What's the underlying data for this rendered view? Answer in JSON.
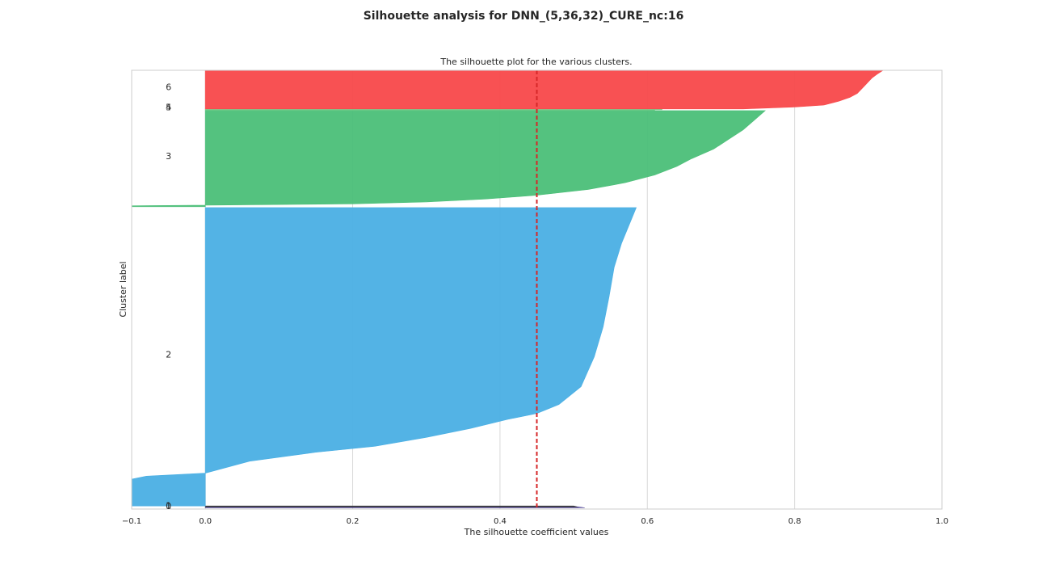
{
  "suptitle": "Silhouette analysis for DNN_(5,36,32)_CURE_nc:16",
  "chart_data": {
    "type": "area",
    "title": "The silhouette plot for the various clusters.",
    "xlabel": "The silhouette coefficient values",
    "ylabel": "Cluster label",
    "xlim": [
      -0.1,
      1.0
    ],
    "ylim": [
      0,
      1000
    ],
    "xticks": [
      -0.1,
      0.0,
      0.2,
      0.4,
      0.6,
      0.8,
      1.0
    ],
    "xtick_labels": [
      "−0.1",
      "0.0",
      "0.2",
      "0.4",
      "0.6",
      "0.8",
      "1.0"
    ],
    "grid": true,
    "average_silhouette": 0.45,
    "average_line_color": "#d62728",
    "clusters": [
      {
        "label": "0",
        "color": "#3b2d8a",
        "y_start": 3,
        "y_end": 5,
        "profile": [
          [
            0,
            0.515
          ],
          [
            1,
            0.505
          ]
        ]
      },
      {
        "label": "1",
        "color": "#3a3a3a",
        "y_start": 5,
        "y_end": 7,
        "profile": [
          [
            0,
            0.505
          ],
          [
            1,
            0.5
          ]
        ]
      },
      {
        "label": "2",
        "color": "#4aafe4",
        "y_start": 7,
        "y_end": 687,
        "profile": [
          [
            0,
            -0.1
          ],
          [
            0.09,
            -0.1
          ],
          [
            0.1,
            -0.08
          ],
          [
            0.11,
            0.0
          ],
          [
            0.15,
            0.06
          ],
          [
            0.18,
            0.15
          ],
          [
            0.2,
            0.23
          ],
          [
            0.23,
            0.3
          ],
          [
            0.26,
            0.36
          ],
          [
            0.29,
            0.41
          ],
          [
            0.31,
            0.45
          ],
          [
            0.34,
            0.48
          ],
          [
            0.4,
            0.51
          ],
          [
            0.5,
            0.528
          ],
          [
            0.6,
            0.54
          ],
          [
            0.7,
            0.548
          ],
          [
            0.8,
            0.555
          ],
          [
            0.88,
            0.565
          ],
          [
            0.94,
            0.575
          ],
          [
            1.0,
            0.585
          ]
        ]
      },
      {
        "label": "3",
        "color": "#4bbf78",
        "y_start": 689,
        "y_end": 908,
        "profile": [
          [
            0,
            -0.1
          ],
          [
            0.01,
            -0.1
          ],
          [
            0.03,
            0.2
          ],
          [
            0.05,
            0.3
          ],
          [
            0.08,
            0.38
          ],
          [
            0.12,
            0.45
          ],
          [
            0.18,
            0.52
          ],
          [
            0.25,
            0.57
          ],
          [
            0.33,
            0.61
          ],
          [
            0.42,
            0.64
          ],
          [
            0.5,
            0.66
          ],
          [
            0.6,
            0.69
          ],
          [
            0.7,
            0.71
          ],
          [
            0.8,
            0.73
          ],
          [
            0.9,
            0.745
          ],
          [
            1.0,
            0.76
          ]
        ]
      },
      {
        "label": "4",
        "color": "#62c783",
        "y_start": 908,
        "y_end": 910,
        "profile": [
          [
            0,
            0.61
          ],
          [
            1,
            0.61
          ]
        ]
      },
      {
        "label": "5",
        "color": "#7acb8c",
        "y_start": 910,
        "y_end": 912,
        "profile": [
          [
            0,
            0.62
          ],
          [
            1,
            0.62
          ]
        ]
      },
      {
        "label": "6",
        "color": "#f8484a",
        "y_start": 912,
        "y_end": 1000,
        "profile": [
          [
            0,
            0.73
          ],
          [
            0.05,
            0.8
          ],
          [
            0.1,
            0.84
          ],
          [
            0.2,
            0.86
          ],
          [
            0.3,
            0.875
          ],
          [
            0.4,
            0.885
          ],
          [
            0.5,
            0.89
          ],
          [
            0.6,
            0.895
          ],
          [
            0.7,
            0.9
          ],
          [
            0.8,
            0.905
          ],
          [
            0.9,
            0.912
          ],
          [
            1.0,
            0.92
          ]
        ]
      }
    ],
    "cluster_label_positions": [
      {
        "label": "6",
        "y": 962
      },
      {
        "label": "5",
        "y": 916
      },
      {
        "label": "4",
        "y": 916
      },
      {
        "label": "3",
        "y": 805
      },
      {
        "label": "2",
        "y": 353
      },
      {
        "label": "1",
        "y": 8
      },
      {
        "label": "0",
        "y": 7
      }
    ]
  }
}
